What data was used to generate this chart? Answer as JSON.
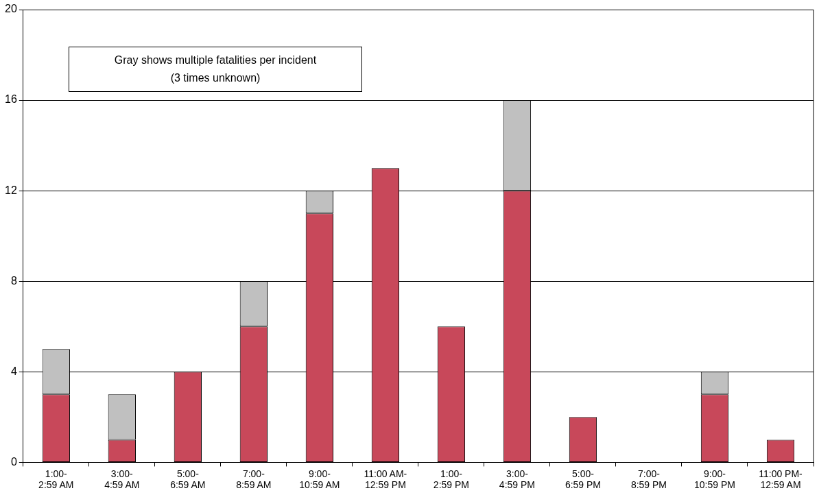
{
  "chart_data": {
    "type": "bar",
    "stacked": true,
    "categories": [
      "1:00-2:59 AM",
      "3:00-4:59 AM",
      "5:00-6:59 AM",
      "7:00-8:59 AM",
      "9:00-10:59 AM",
      "11:00 AM-12:59 PM",
      "1:00-2:59 PM",
      "3:00-4:59 PM",
      "5:00-6:59 PM",
      "7:00-8:59 PM",
      "9:00-10:59 PM",
      "11:00 PM-12:59 AM"
    ],
    "series": [
      {
        "color": "#c8485a",
        "values": [
          3,
          1,
          4,
          6,
          11,
          13,
          6,
          12,
          2,
          0,
          3,
          1
        ]
      },
      {
        "color": "#c0c0c0",
        "values": [
          2,
          2,
          0,
          2,
          1,
          0,
          0,
          4,
          0,
          0,
          1,
          0
        ]
      }
    ],
    "ylim": [
      0,
      20
    ],
    "yticks": [
      0,
      4,
      8,
      12,
      16,
      20
    ],
    "grid": "y",
    "legend": false,
    "annotations": [
      "Gray shows multiple fatalities per incident",
      "(3 times unknown)"
    ]
  }
}
